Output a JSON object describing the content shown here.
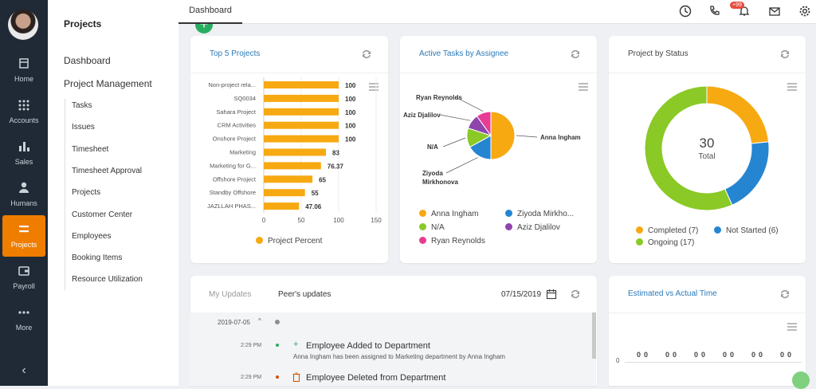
{
  "nav": {
    "items": [
      {
        "label": "Home",
        "icon": "home-icon"
      },
      {
        "label": "Accounts",
        "icon": "grid-icon"
      },
      {
        "label": "Sales",
        "icon": "bar-chart-icon"
      },
      {
        "label": "Humans",
        "icon": "person-icon"
      },
      {
        "label": "Projects",
        "icon": "list-icon",
        "active": true
      },
      {
        "label": "Payroll",
        "icon": "wallet-icon"
      },
      {
        "label": "More",
        "icon": "more-icon"
      }
    ]
  },
  "sidebar": {
    "title": "Projects",
    "top_items": [
      "Dashboard",
      "Project Management"
    ],
    "sub_items": [
      "Tasks",
      "Issues",
      "Timesheet",
      "Timesheet Approval",
      "Projects",
      "Customer Center",
      "Employees",
      "Booking Items",
      "Resource Utilization"
    ]
  },
  "topbar": {
    "tab": "Dashboard",
    "badge": "+99"
  },
  "colors": {
    "accent": "#ef7d00",
    "orange": "#f7a912",
    "blue": "#2585d1",
    "green": "#8ac926",
    "purple": "#8e44ad",
    "pink": "#e73c93"
  },
  "top5": {
    "title": "Top 5 Projects",
    "legend": "Project Percent"
  },
  "tasks": {
    "title": "Active Tasks by Assignee",
    "legend": [
      "Anna Ingham",
      "Ziyoda Mirkho...",
      "N/A",
      "Aziz Djalilov",
      "Ryan Reynolds"
    ]
  },
  "status": {
    "title": "Project by Status",
    "center_value": "30",
    "center_label": "Total",
    "legend": [
      "Completed (7)",
      "Not Started (6)",
      "Ongoing (17)"
    ]
  },
  "updates": {
    "tab_mine": "My Updates",
    "tab_peer": "Peer's updates",
    "date": "07/15/2019",
    "group_date": "2019-07-05",
    "entries": [
      {
        "time": "2:29 PM",
        "title": "Employee Added to Department",
        "desc": "Anna Ingham has been assigned to Marketing department by Anna Ingham",
        "sign": "+"
      },
      {
        "time": "2:29 PM",
        "title": "Employee Deleted from Department",
        "desc": "",
        "sign": ""
      }
    ]
  },
  "estimated": {
    "title": "Estimated vs Actual Time",
    "axis_zero": "0",
    "value_labels": [
      "0",
      "0",
      "0",
      "0",
      "0",
      "0",
      "0",
      "0",
      "0",
      "0",
      "0",
      "0"
    ]
  },
  "chart_data": [
    {
      "type": "bar",
      "orientation": "horizontal",
      "title": "Top 5 Projects",
      "categories": [
        "Non-project rela...",
        "SQ0034",
        "Sahara Project",
        "CRM Activities",
        "Onshore Project",
        "Marketing",
        "Marketing for G...",
        "Offshore Project",
        "Standby Offshore",
        "JAZLLAH PHAS..."
      ],
      "series": [
        {
          "name": "Project Percent",
          "values": [
            100,
            100,
            100,
            100,
            100,
            83,
            76.37,
            65,
            55,
            47.06
          ]
        }
      ],
      "value_labels": [
        "100",
        "100",
        "100",
        "100",
        "100",
        "83",
        "76.37",
        "65",
        "55",
        "47.06"
      ],
      "xlim": [
        0,
        150
      ],
      "xticks": [
        "0",
        "50",
        "100",
        "150"
      ],
      "legend": "bottom"
    },
    {
      "type": "pie",
      "title": "Active Tasks by Assignee",
      "labels": [
        "Anna Ingham",
        "Ziyoda Mirkhonova",
        "N/A",
        "Aziz Djalilov",
        "Ryan Reynolds"
      ],
      "values": [
        50,
        17,
        13,
        10,
        10
      ],
      "colors": [
        "#f7a912",
        "#2585d1",
        "#8ac926",
        "#8e44ad",
        "#e73c93"
      ],
      "legend": "bottom"
    },
    {
      "type": "pie",
      "subtype": "donut",
      "title": "Project by Status",
      "labels": [
        "Completed",
        "Not Started",
        "Ongoing"
      ],
      "values": [
        7,
        6,
        17
      ],
      "colors": [
        "#f7a912",
        "#2585d1",
        "#8ac926"
      ],
      "legend": "bottom"
    }
  ]
}
